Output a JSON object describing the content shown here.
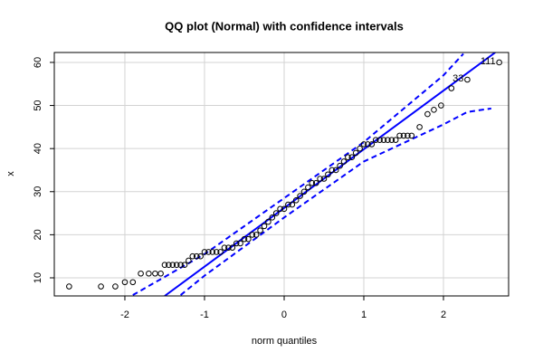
{
  "chart_data": {
    "type": "qq",
    "title": "QQ plot (Normal) with confidence intervals",
    "x_label": "norm quantiles",
    "y_label": "x",
    "xlim": [
      -2.886,
      2.818
    ],
    "ylim": [
      5.8,
      62.3
    ],
    "xticks": [
      -2,
      -1,
      0,
      1,
      2
    ],
    "yticks": [
      10,
      20,
      30,
      40,
      50,
      60
    ],
    "grid": true,
    "points": {
      "color": "#000000",
      "x": [
        -2.7,
        -2.3,
        -2.12,
        -2.0,
        -1.9,
        -1.8,
        -1.7,
        -1.62,
        -1.55,
        -1.5,
        -1.45,
        -1.4,
        -1.35,
        -1.3,
        -1.25,
        -1.2,
        -1.15,
        -1.1,
        -1.05,
        -1.0,
        -0.95,
        -0.9,
        -0.85,
        -0.8,
        -0.75,
        -0.7,
        -0.65,
        -0.6,
        -0.55,
        -0.5,
        -0.45,
        -0.4,
        -0.35,
        -0.3,
        -0.25,
        -0.2,
        -0.15,
        -0.1,
        -0.05,
        0,
        0.05,
        0.1,
        0.15,
        0.2,
        0.25,
        0.3,
        0.35,
        0.4,
        0.45,
        0.5,
        0.55,
        0.6,
        0.65,
        0.7,
        0.75,
        0.8,
        0.85,
        0.9,
        0.95,
        1.0,
        1.05,
        1.1,
        1.15,
        1.2,
        1.25,
        1.3,
        1.35,
        1.4,
        1.45,
        1.5,
        1.55,
        1.6,
        1.7,
        1.8,
        1.88,
        1.97,
        2.1,
        2.3,
        2.7
      ],
      "y": [
        8,
        8,
        8,
        9,
        9,
        11,
        11,
        11,
        11,
        13,
        13,
        13,
        13,
        13,
        13,
        14,
        15,
        15,
        15,
        16,
        16,
        16,
        16,
        16,
        17,
        17,
        17,
        18,
        18,
        19,
        19,
        20,
        20,
        21,
        22,
        23,
        24,
        25,
        26,
        26,
        27,
        27,
        28,
        29,
        30,
        31,
        32,
        32,
        33,
        33,
        34,
        35,
        35,
        36,
        37,
        38,
        38,
        39,
        40,
        41,
        41,
        41,
        42,
        42,
        42,
        42,
        42,
        42,
        43,
        43,
        43,
        43,
        45,
        48,
        49,
        50,
        54,
        56,
        60
      ]
    },
    "lines": [
      {
        "x": [
          -1.5,
          2.65
        ],
        "y": [
          5.8,
          62.3
        ],
        "color": "#0000ff",
        "dashed": false
      },
      {
        "x": [
          -1.9,
          -1,
          0,
          1,
          2,
          2.25
        ],
        "y": [
          6,
          15.5,
          28.5,
          41.5,
          57,
          62
        ],
        "color": "#0000ff",
        "dashed": true
      },
      {
        "x": [
          -1.3,
          -1,
          0,
          1,
          2,
          2.3,
          2.6
        ],
        "y": [
          6,
          10.5,
          24,
          37,
          45.6,
          48.5,
          49.3
        ],
        "color": "#0000ff",
        "dashed": true
      }
    ],
    "point_labels": [
      {
        "text": "111",
        "x": 2.7,
        "y": 60
      },
      {
        "text": "33",
        "x": 2.3,
        "y": 56
      }
    ]
  }
}
